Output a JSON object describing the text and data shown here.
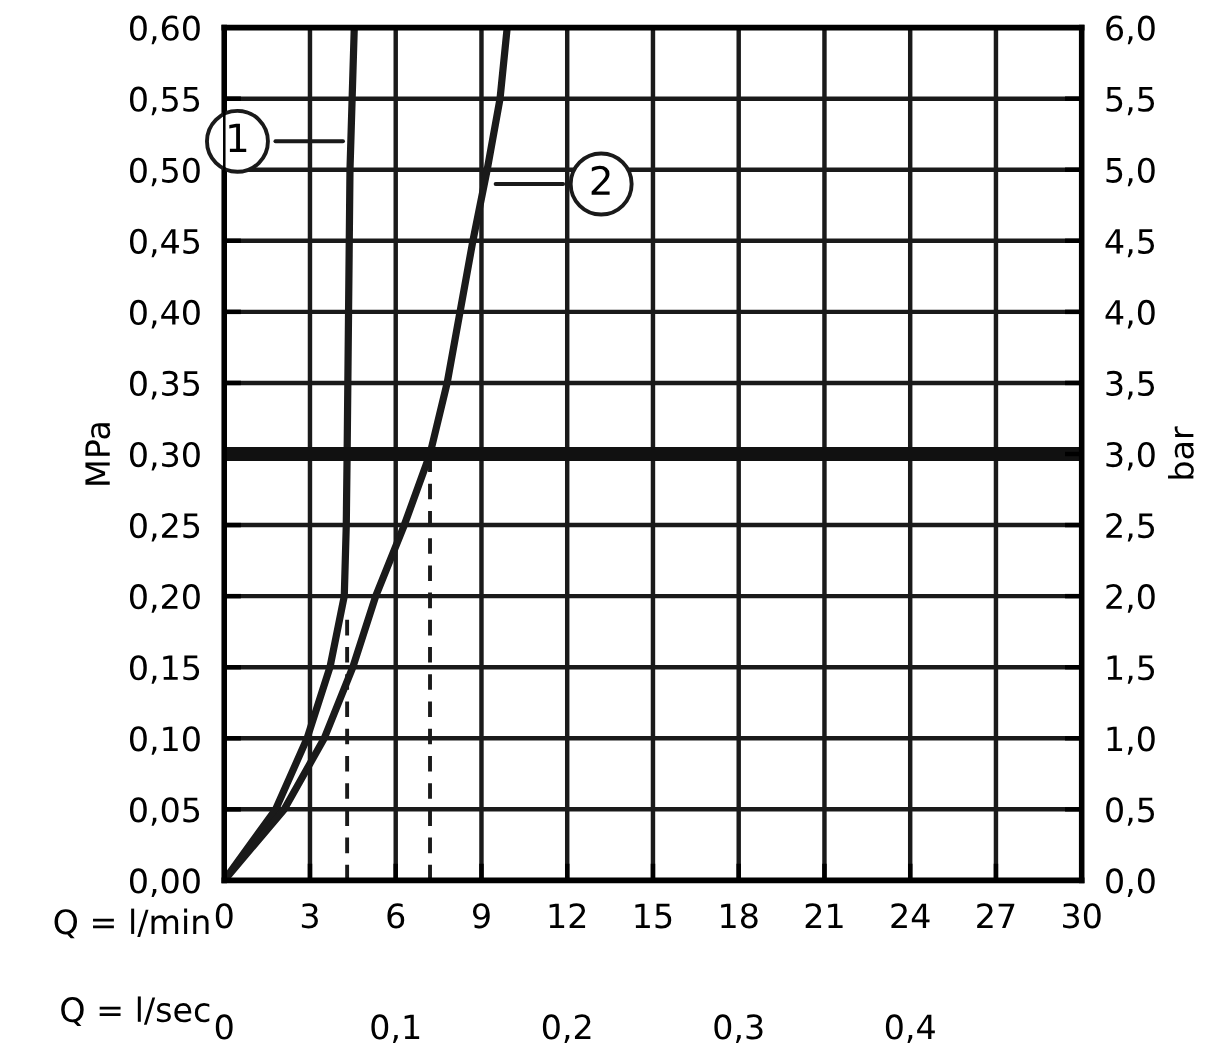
{
  "chart_data": {
    "type": "line",
    "xlabel": "Q = l/min",
    "x2label": "Q = l/sec",
    "ylabel": "MPa",
    "y2label": "bar",
    "xlim": [
      0,
      30
    ],
    "xticks": [
      0,
      3,
      6,
      9,
      12,
      15,
      18,
      21,
      24,
      27,
      30
    ],
    "x2lim": [
      0,
      0.5
    ],
    "x2ticks": [
      0,
      {
        "value": 0.1,
        "label": "0,1"
      },
      {
        "value": 0.2,
        "label": "0,2"
      },
      {
        "value": 0.3,
        "label": "0,3"
      },
      {
        "value": 0.4,
        "label": "0,4"
      }
    ],
    "ylim": [
      0,
      0.6
    ],
    "yticks": [
      {
        "value": 0,
        "label": "0,00"
      },
      {
        "value": 0.05,
        "label": "0,05"
      },
      {
        "value": 0.1,
        "label": "0,10"
      },
      {
        "value": 0.15,
        "label": "0,15"
      },
      {
        "value": 0.2,
        "label": "0,20"
      },
      {
        "value": 0.25,
        "label": "0,25"
      },
      {
        "value": 0.3,
        "label": "0,30"
      },
      {
        "value": 0.35,
        "label": "0,35"
      },
      {
        "value": 0.4,
        "label": "0,40"
      },
      {
        "value": 0.45,
        "label": "0,45"
      },
      {
        "value": 0.5,
        "label": "0,50"
      },
      {
        "value": 0.55,
        "label": "0,55"
      },
      {
        "value": 0.6,
        "label": "0,60"
      }
    ],
    "y2lim": [
      0,
      6
    ],
    "y2ticks": [
      {
        "value": 0,
        "label": "0,0"
      },
      {
        "value": 0.5,
        "label": "0,5"
      },
      {
        "value": 1,
        "label": "1,0"
      },
      {
        "value": 1.5,
        "label": "1,5"
      },
      {
        "value": 2,
        "label": "2,0"
      },
      {
        "value": 2.5,
        "label": "2,5"
      },
      {
        "value": 3,
        "label": "3,0"
      },
      {
        "value": 3.5,
        "label": "3,5"
      },
      {
        "value": 4,
        "label": "4,0"
      },
      {
        "value": 4.5,
        "label": "4,5"
      },
      {
        "value": 5,
        "label": "5,0"
      },
      {
        "value": 5.5,
        "label": "5,5"
      },
      {
        "value": 6,
        "label": "6,0"
      }
    ],
    "grid": true,
    "marker": "none",
    "series": [
      {
        "color": "#1a1a1a",
        "line_style": "solid",
        "x": [
          0,
          1.8,
          2.9,
          3.7,
          4.2,
          4.27,
          4.3,
          4.35,
          4.4,
          4.55
        ],
        "values": [
          0,
          0.05,
          0.1,
          0.15,
          0.2,
          0.25,
          0.3,
          0.4,
          0.5,
          0.6
        ]
      },
      {
        "color": "#1a1a1a",
        "line_style": "solid",
        "x": [
          0,
          2.1,
          3.5,
          4.5,
          5.3,
          6.3,
          7.2,
          7.8,
          8.25,
          8.7,
          9.2,
          9.65,
          9.9
        ],
        "values": [
          0,
          0.05,
          0.1,
          0.15,
          0.2,
          0.25,
          0.3,
          0.35,
          0.4,
          0.45,
          0.5,
          0.55,
          0.6
        ]
      },
      {
        "color": "#1a1a1a",
        "line_style": "dashed",
        "x": [
          4.3,
          4.3
        ],
        "values": [
          0,
          0.19
        ]
      },
      {
        "color": "#1a1a1a",
        "line_style": "dashed",
        "x": [
          7.2,
          7.2
        ],
        "values": [
          0,
          0.3
        ]
      }
    ],
    "ref_lines": [
      {
        "axis": "y",
        "value": 0.3,
        "color": "#111111",
        "line_style": "solid"
      }
    ],
    "annotations": [
      {
        "text": "1",
        "x": 4.35,
        "y": 0.52
      },
      {
        "text": "2",
        "x": 9.3,
        "y": 0.49
      }
    ]
  }
}
